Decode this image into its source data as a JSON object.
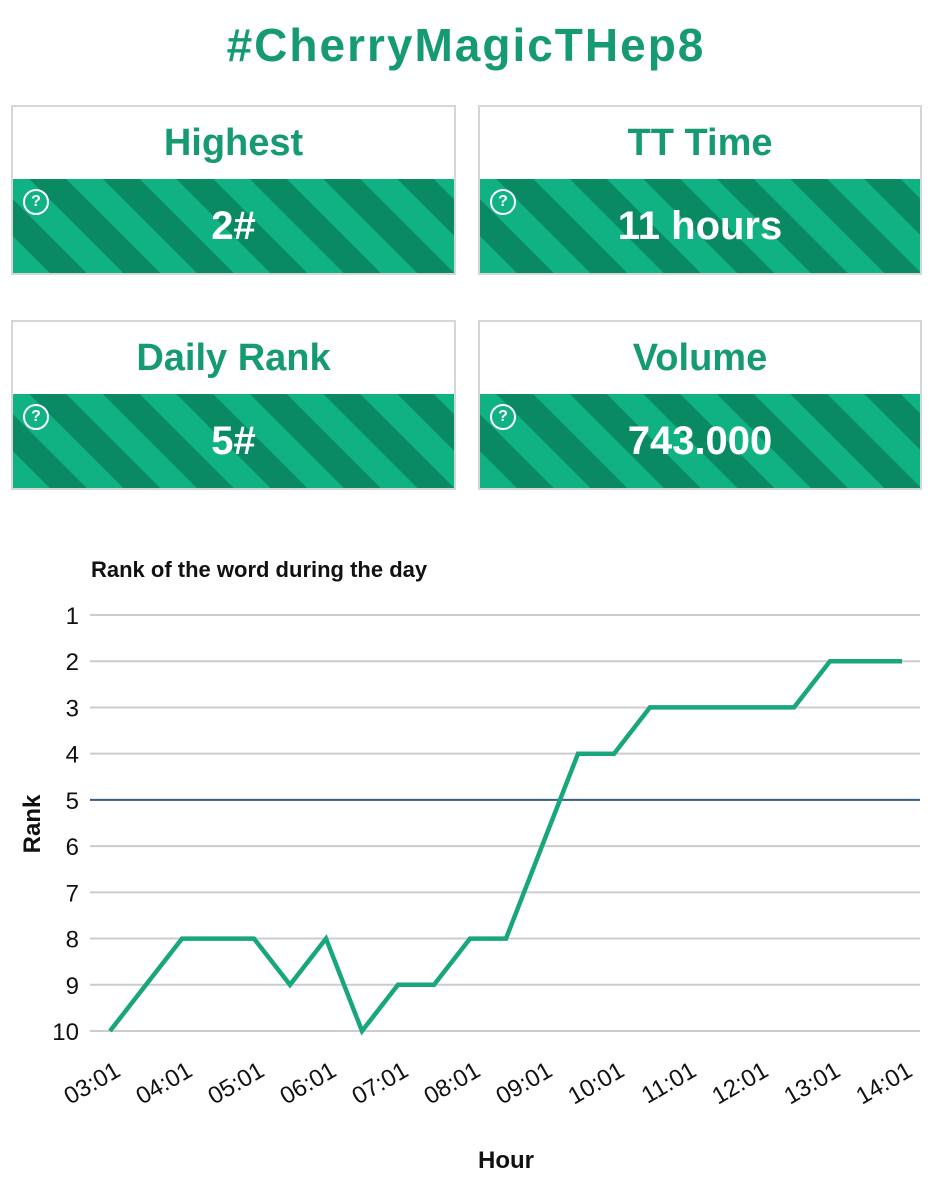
{
  "header": {
    "title": "#CherryMagicTHep8"
  },
  "colors": {
    "accent": "#159a73",
    "stripe_light": "#10b283",
    "stripe_dark": "#0a8a62",
    "line": "#18a67c",
    "reference": "#3a5f86",
    "grid": "#cccccc"
  },
  "cards": [
    {
      "label": "Highest",
      "value": "2#",
      "icon": "help-circle-icon"
    },
    {
      "label": "TT Time",
      "value": "11 hours",
      "icon": "help-circle-icon"
    },
    {
      "label": "Daily Rank",
      "value": "5#",
      "icon": "help-circle-icon"
    },
    {
      "label": "Volume",
      "value": "743.000",
      "icon": "help-circle-icon"
    }
  ],
  "chart_data": {
    "type": "line",
    "title": "Rank of the word during the day",
    "xlabel": "Hour",
    "ylabel": "Rank",
    "ylim": [
      1,
      10
    ],
    "y_inverted": true,
    "yticks": [
      "1",
      "2",
      "3",
      "4",
      "5",
      "6",
      "7",
      "8",
      "9",
      "10"
    ],
    "xticks": [
      "03:01",
      "04:01",
      "05:01",
      "06:01",
      "07:01",
      "08:01",
      "09:01",
      "10:01",
      "11:01",
      "12:01",
      "13:01",
      "14:01"
    ],
    "grid": true,
    "reference_line": 5,
    "series": [
      {
        "x": [
          "03:01",
          "03:31",
          "04:01",
          "04:31",
          "05:01",
          "05:31",
          "06:01",
          "06:31",
          "07:01",
          "07:31",
          "08:01",
          "08:31",
          "09:01",
          "09:31",
          "10:01",
          "10:31",
          "11:01",
          "11:31",
          "12:01",
          "12:31",
          "13:01",
          "13:31",
          "14:01"
        ],
        "values": [
          10,
          9,
          8,
          8,
          8,
          9,
          8,
          10,
          9,
          9,
          8,
          8,
          6,
          4,
          4,
          3,
          3,
          3,
          3,
          3,
          2,
          2,
          2
        ]
      }
    ]
  }
}
